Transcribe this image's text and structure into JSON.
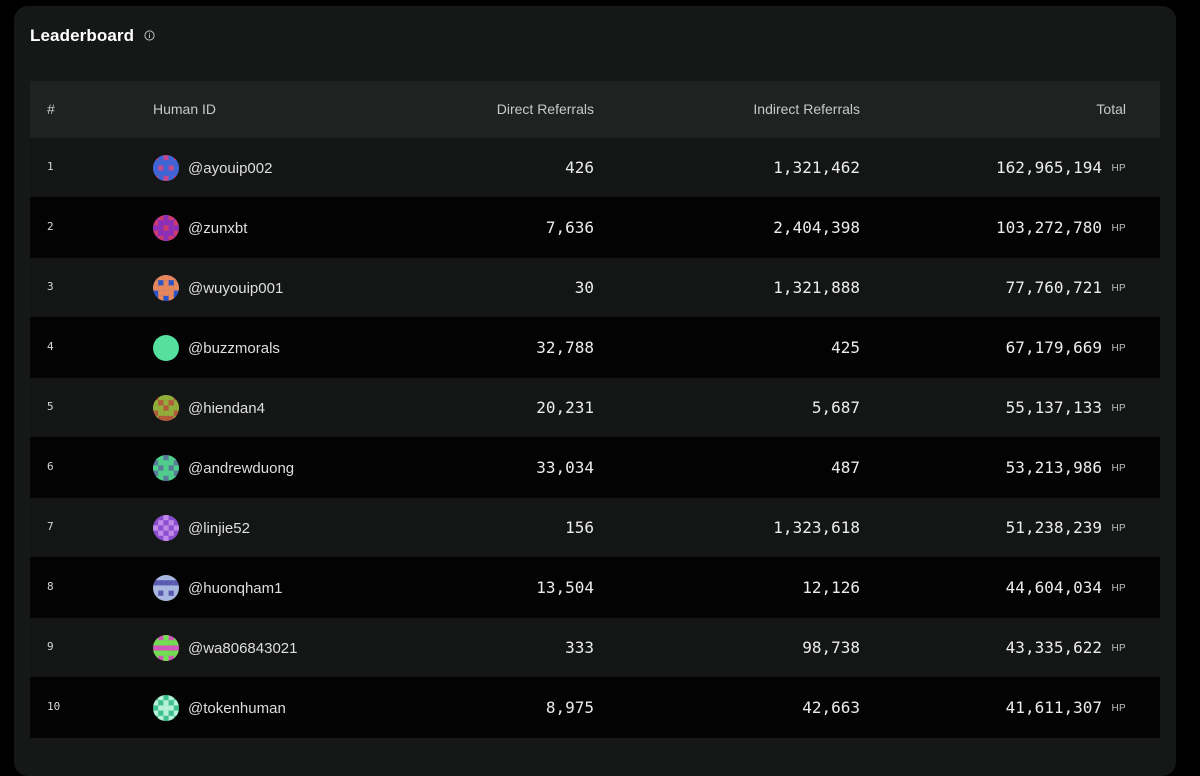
{
  "title": "Leaderboard",
  "columns": {
    "rank": "#",
    "human_id": "Human ID",
    "direct": "Direct Referrals",
    "indirect": "Indirect Referrals",
    "total": "Total"
  },
  "unit": "HP",
  "colors": {
    "panel": "#161818",
    "header_row": "#1e2322",
    "row_odd": "#141616",
    "row_even": "#030303",
    "text": "#e6e6e6"
  },
  "rows": [
    {
      "rank": "1",
      "handle": "@ayouip002",
      "direct": "426",
      "indirect": "1,321,462",
      "total": "162,965,194",
      "avatar": {
        "bg": "#c04a8f",
        "fg": "#3a66d8"
      }
    },
    {
      "rank": "2",
      "handle": "@zunxbt",
      "direct": "7,636",
      "indirect": "2,404,398",
      "total": "103,272,780",
      "avatar": {
        "bg": "#cf3a6e",
        "fg": "#8a2fb8"
      }
    },
    {
      "rank": "3",
      "handle": "@wuyouip001",
      "direct": "30",
      "indirect": "1,321,888",
      "total": "77,760,721",
      "avatar": {
        "bg": "#2b54c9",
        "fg": "#e8885a"
      }
    },
    {
      "rank": "4",
      "handle": "@buzzmorals",
      "direct": "32,788",
      "indirect": "425",
      "total": "67,179,669",
      "avatar": {
        "bg": "#55e0a0",
        "fg": "#55e0a0"
      }
    },
    {
      "rank": "5",
      "handle": "@hiendan4",
      "direct": "20,231",
      "indirect": "5,687",
      "total": "55,137,133",
      "avatar": {
        "bg": "#b25a3a",
        "fg": "#8fae3a"
      }
    },
    {
      "rank": "6",
      "handle": "@andrewduong",
      "direct": "33,034",
      "indirect": "487",
      "total": "53,213,986",
      "avatar": {
        "bg": "#5a7a9a",
        "fg": "#4fd08a"
      }
    },
    {
      "rank": "7",
      "handle": "@linjie52",
      "direct": "156",
      "indirect": "1,323,618",
      "total": "51,238,239",
      "avatar": {
        "bg": "#8a4fd0",
        "fg": "#c08ae8"
      }
    },
    {
      "rank": "8",
      "handle": "@huonqham1",
      "direct": "13,504",
      "indirect": "12,126",
      "total": "44,604,034",
      "avatar": {
        "bg": "#a8b8e0",
        "fg": "#5a5ab0"
      }
    },
    {
      "rank": "9",
      "handle": "@wa806843021",
      "direct": "333",
      "indirect": "98,738",
      "total": "43,335,622",
      "avatar": {
        "bg": "#d05ab8",
        "fg": "#6fe050"
      }
    },
    {
      "rank": "10",
      "handle": "@tokenhuman",
      "direct": "8,975",
      "indirect": "42,663",
      "total": "41,611,307",
      "avatar": {
        "bg": "#3fc090",
        "fg": "#b8f0d8"
      }
    }
  ]
}
